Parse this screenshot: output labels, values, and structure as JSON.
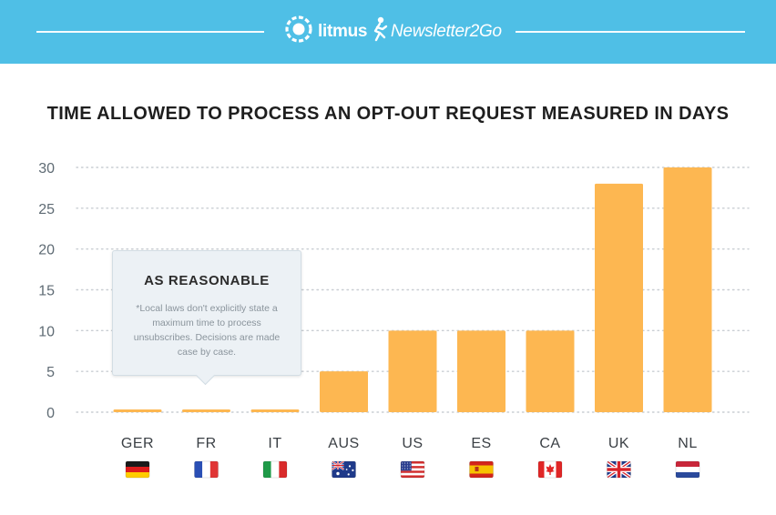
{
  "header": {
    "brands": [
      {
        "name": "litmus",
        "icon": "litmus-logo-icon"
      },
      {
        "name": "Newsletter2Go",
        "icon": "newsletter2go-logo-icon"
      }
    ],
    "background_color": "#4fbfe6"
  },
  "tooltip": {
    "title": "AS REASONABLE",
    "body": "*Local laws don't explicitly state a maximum time to process unsubscribes. Decisions are made case by case."
  },
  "chart_data": {
    "type": "bar",
    "title": "TIME ALLOWED TO PROCESS AN OPT-OUT REQUEST MEASURED IN DAYS",
    "xlabel": "",
    "ylabel": "",
    "categories": [
      "GER",
      "FR",
      "IT",
      "AUS",
      "US",
      "ES",
      "CA",
      "UK",
      "NL"
    ],
    "values": [
      0,
      0,
      0,
      5,
      10,
      10,
      10,
      28,
      30
    ],
    "ylim": [
      0,
      30
    ],
    "yticks": [
      0,
      5,
      10,
      15,
      20,
      25,
      30
    ],
    "grid": true,
    "bar_color": "#fdb751",
    "flags": [
      "germany-flag-icon",
      "france-flag-icon",
      "italy-flag-icon",
      "australia-flag-icon",
      "usa-flag-icon",
      "spain-flag-icon",
      "canada-flag-icon",
      "uk-flag-icon",
      "netherlands-flag-icon"
    ]
  }
}
